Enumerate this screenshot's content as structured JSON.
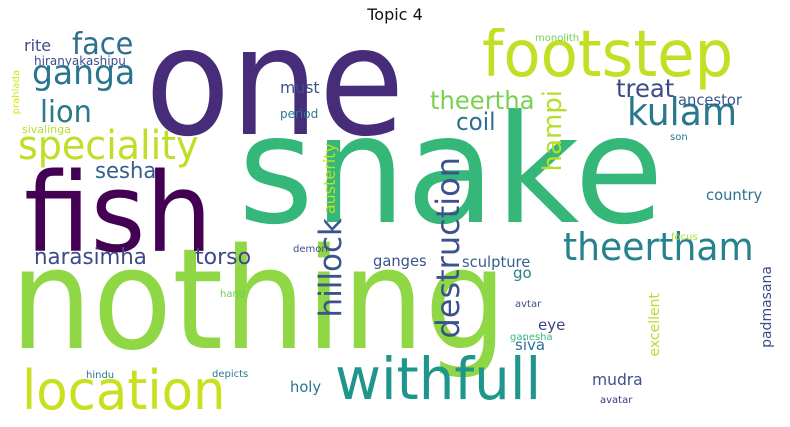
{
  "title": "Topic 4",
  "words": [
    {
      "text": "one",
      "color": "#472c7a"
    },
    {
      "text": "snake",
      "color": "#35b779"
    },
    {
      "text": "nothing",
      "color": "#8fd744"
    },
    {
      "text": "fish",
      "color": "#440154"
    },
    {
      "text": "footstep",
      "color": "#c2df23"
    },
    {
      "text": "withfull",
      "color": "#1f968b"
    },
    {
      "text": "location",
      "color": "#c8e020"
    },
    {
      "text": "speciality",
      "color": "#bddf26"
    },
    {
      "text": "theertham",
      "color": "#26828e"
    },
    {
      "text": "kulam",
      "color": "#2a788e"
    },
    {
      "text": "ganga",
      "color": "#2a768e"
    },
    {
      "text": "face",
      "color": "#2e6f8e"
    },
    {
      "text": "lion",
      "color": "#2a788e"
    },
    {
      "text": "destruction",
      "color": "#3b528b"
    },
    {
      "text": "hillock",
      "color": "#39558c"
    },
    {
      "text": "narasimha",
      "color": "#3e4989"
    },
    {
      "text": "torso",
      "color": "#404688"
    },
    {
      "text": "theertha",
      "color": "#7ad151"
    },
    {
      "text": "treat",
      "color": "#3e4a89"
    },
    {
      "text": "coil",
      "color": "#2d708e"
    },
    {
      "text": "sesha",
      "color": "#355f8d"
    },
    {
      "text": "hampi",
      "color": "#b5de2b"
    },
    {
      "text": "ancestor",
      "color": "#39568c"
    },
    {
      "text": "country",
      "color": "#2c728e"
    },
    {
      "text": "must",
      "color": "#3b528b"
    },
    {
      "text": "period",
      "color": "#2a788e"
    },
    {
      "text": "rite",
      "color": "#3e4c8a"
    },
    {
      "text": "hiranyakashipu",
      "color": "#3e4c8a"
    },
    {
      "text": "sivalinga",
      "color": "#b5de2b"
    },
    {
      "text": "prahlada",
      "color": "#d8e219"
    },
    {
      "text": "monolith",
      "color": "#73d056"
    },
    {
      "text": "son",
      "color": "#2a788e"
    },
    {
      "text": "austerity",
      "color": "#bddf26"
    },
    {
      "text": "ganges",
      "color": "#3b528b"
    },
    {
      "text": "sculpture",
      "color": "#355f8d"
    },
    {
      "text": "go",
      "color": "#26828e"
    },
    {
      "text": "eye",
      "color": "#404688"
    },
    {
      "text": "siva",
      "color": "#2c728e"
    },
    {
      "text": "excellent",
      "color": "#b5de2b"
    },
    {
      "text": "mudra",
      "color": "#3b528b"
    },
    {
      "text": "holy",
      "color": "#2c728e"
    },
    {
      "text": "padmasana",
      "color": "#3e4c8a"
    },
    {
      "text": "focus",
      "color": "#addc30"
    },
    {
      "text": "demon",
      "color": "#3e4c8a"
    },
    {
      "text": "hand",
      "color": "#6ccd5a"
    },
    {
      "text": "avtar",
      "color": "#3b528b"
    },
    {
      "text": "ganesha",
      "color": "#35b779"
    },
    {
      "text": "hindu",
      "color": "#2a788e"
    },
    {
      "text": "depicts",
      "color": "#2a788e"
    },
    {
      "text": "avatar",
      "color": "#46337e"
    }
  ]
}
